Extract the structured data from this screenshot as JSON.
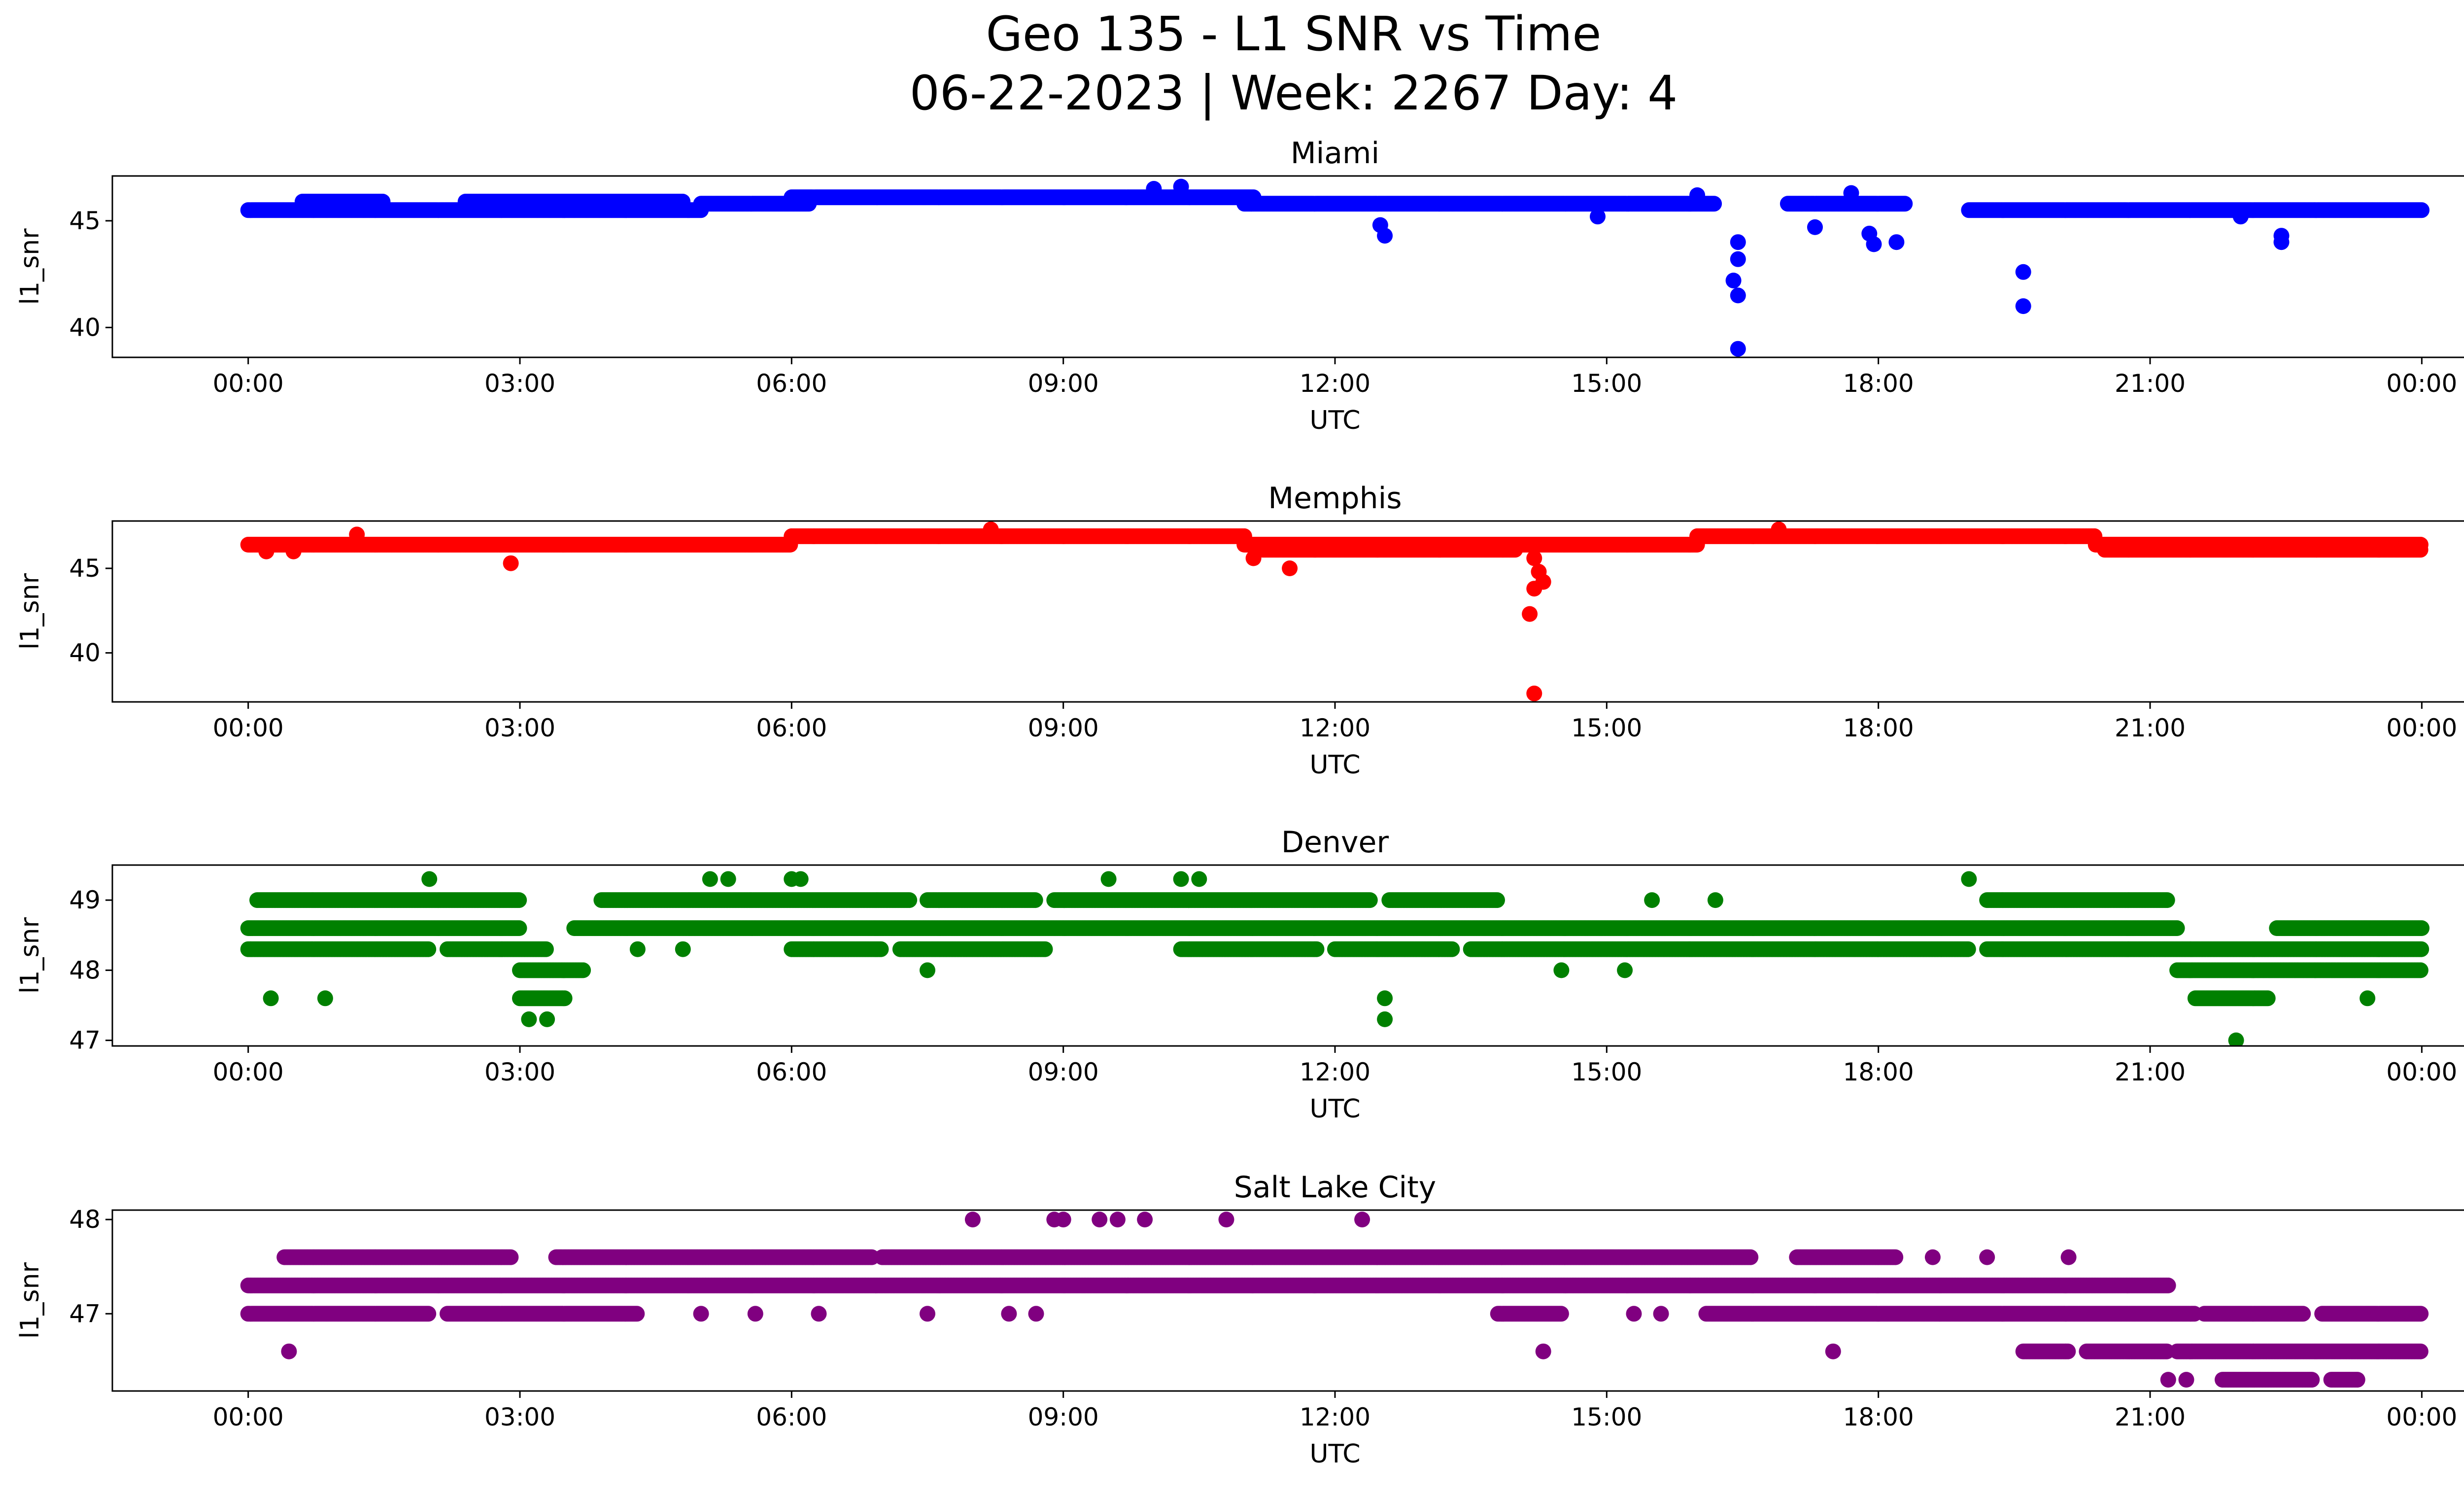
{
  "figure": {
    "title_line1": "Geo 135 - L1 SNR vs Time",
    "title_line2": "06-22-2023 | Week: 2267 Day: 4"
  },
  "chart_data": [
    {
      "type": "scatter",
      "title": "Miami",
      "xlabel": "UTC",
      "ylabel": "l1_snr",
      "color": "#0000ff",
      "xlim_hours": [
        -1.5,
        25.5
      ],
      "ylim": [
        38.6,
        47.1
      ],
      "xticks": [
        "00:00",
        "03:00",
        "06:00",
        "09:00",
        "12:00",
        "15:00",
        "18:00",
        "21:00",
        "00:00"
      ],
      "yticks": [
        40,
        45
      ],
      "bands": [
        {
          "y": 45.5,
          "segments": [
            [
              0.0,
              5.0
            ],
            [
              19.0,
              24.0
            ]
          ]
        },
        {
          "y": 45.8,
          "segments": [
            [
              5.0,
              6.2
            ],
            [
              11.0,
              16.2
            ],
            [
              17.0,
              18.3
            ]
          ]
        },
        {
          "y": 46.1,
          "segments": [
            [
              6.0,
              11.1
            ]
          ]
        },
        {
          "y": 45.9,
          "segments": [
            [
              0.6,
              1.5
            ],
            [
              2.4,
              4.8
            ]
          ]
        }
      ],
      "points": [
        [
          10.0,
          46.5
        ],
        [
          10.3,
          46.6
        ],
        [
          12.5,
          44.8
        ],
        [
          12.55,
          44.3
        ],
        [
          14.9,
          45.2
        ],
        [
          16.45,
          44.0
        ],
        [
          16.45,
          43.2
        ],
        [
          16.4,
          42.2
        ],
        [
          16.45,
          41.5
        ],
        [
          16.45,
          39.0
        ],
        [
          17.3,
          44.7
        ],
        [
          17.9,
          44.4
        ],
        [
          17.95,
          43.9
        ],
        [
          18.2,
          44.0
        ],
        [
          16.0,
          46.2
        ],
        [
          17.7,
          46.3
        ],
        [
          19.6,
          42.6
        ],
        [
          19.6,
          41.0
        ],
        [
          22.45,
          44.3
        ],
        [
          22.45,
          44.0
        ],
        [
          22.0,
          45.2
        ]
      ]
    },
    {
      "type": "scatter",
      "title": "Memphis",
      "xlabel": "UTC",
      "ylabel": "l1_snr",
      "color": "#ff0000",
      "xlim_hours": [
        -1.5,
        25.5
      ],
      "ylim": [
        37.1,
        47.8
      ],
      "xticks": [
        "00:00",
        "03:00",
        "06:00",
        "09:00",
        "12:00",
        "15:00",
        "18:00",
        "21:00",
        "00:00"
      ],
      "yticks": [
        40,
        45
      ],
      "bands": [
        {
          "y": 46.4,
          "segments": [
            [
              0.0,
              6.0
            ],
            [
              11.0,
              16.0
            ],
            [
              20.4,
              24.0
            ]
          ]
        },
        {
          "y": 46.9,
          "segments": [
            [
              6.0,
              11.0
            ],
            [
              16.0,
              20.4
            ]
          ]
        },
        {
          "y": 46.1,
          "segments": [
            [
              11.2,
              14.0
            ],
            [
              20.5,
              24.0
            ]
          ]
        }
      ],
      "points": [
        [
          1.2,
          47.0
        ],
        [
          2.9,
          45.3
        ],
        [
          8.2,
          47.3
        ],
        [
          11.1,
          45.6
        ],
        [
          11.5,
          45.0
        ],
        [
          14.2,
          45.6
        ],
        [
          14.25,
          44.8
        ],
        [
          14.3,
          44.2
        ],
        [
          14.2,
          43.8
        ],
        [
          14.15,
          42.3
        ],
        [
          14.2,
          37.6
        ],
        [
          16.9,
          47.3
        ],
        [
          0.2,
          46.0
        ],
        [
          0.5,
          46.0
        ]
      ]
    },
    {
      "type": "scatter",
      "title": "Denver",
      "xlabel": "UTC",
      "ylabel": "l1_snr",
      "color": "#008000",
      "xlim_hours": [
        -1.5,
        25.5
      ],
      "ylim": [
        46.92,
        49.5
      ],
      "xticks": [
        "00:00",
        "03:00",
        "06:00",
        "09:00",
        "12:00",
        "15:00",
        "18:00",
        "21:00",
        "00:00"
      ],
      "yticks": [
        47,
        48,
        49
      ],
      "bands": [
        {
          "y": 49.0,
          "segments": [
            [
              0.1,
              3.0
            ],
            [
              3.9,
              7.3
            ],
            [
              7.5,
              8.7
            ],
            [
              8.9,
              12.4
            ],
            [
              12.6,
              13.8
            ],
            [
              19.2,
              21.2
            ]
          ]
        },
        {
          "y": 48.6,
          "segments": [
            [
              0.0,
              3.0
            ],
            [
              3.6,
              21.3
            ],
            [
              22.4,
              24.0
            ]
          ]
        },
        {
          "y": 48.3,
          "segments": [
            [
              0.0,
              2.0
            ],
            [
              2.2,
              3.3
            ],
            [
              6.0,
              7.0
            ],
            [
              7.2,
              8.8
            ],
            [
              10.3,
              11.8
            ],
            [
              12.0,
              13.3
            ],
            [
              13.5,
              19.0
            ],
            [
              19.2,
              24.0
            ]
          ]
        },
        {
          "y": 48.0,
          "segments": [
            [
              3.0,
              3.7
            ],
            [
              21.3,
              24.0
            ]
          ]
        },
        {
          "y": 47.6,
          "segments": [
            [
              3.0,
              3.5
            ],
            [
              21.5,
              22.3
            ]
          ]
        }
      ],
      "points": [
        [
          0.25,
          47.6
        ],
        [
          0.85,
          47.6
        ],
        [
          2.0,
          49.3
        ],
        [
          3.1,
          47.3
        ],
        [
          3.3,
          47.3
        ],
        [
          5.1,
          49.3
        ],
        [
          5.3,
          49.3
        ],
        [
          6.0,
          49.3
        ],
        [
          6.1,
          49.3
        ],
        [
          7.5,
          48.0
        ],
        [
          9.5,
          49.3
        ],
        [
          10.3,
          49.3
        ],
        [
          10.5,
          49.3
        ],
        [
          12.55,
          47.6
        ],
        [
          12.55,
          47.3
        ],
        [
          14.5,
          48.0
        ],
        [
          15.2,
          48.0
        ],
        [
          19.0,
          49.3
        ],
        [
          21.95,
          47.0
        ],
        [
          23.4,
          47.6
        ],
        [
          4.3,
          48.3
        ],
        [
          4.8,
          48.3
        ],
        [
          15.5,
          49.0
        ],
        [
          16.2,
          49.0
        ]
      ]
    },
    {
      "type": "scatter",
      "title": "Salt Lake City",
      "xlabel": "UTC",
      "ylabel": "l1_snr",
      "color": "#800080",
      "xlim_hours": [
        -1.5,
        25.5
      ],
      "ylim": [
        46.18,
        48.1
      ],
      "xticks": [
        "00:00",
        "03:00",
        "06:00",
        "09:00",
        "12:00",
        "15:00",
        "18:00",
        "21:00",
        "00:00"
      ],
      "yticks": [
        47,
        48
      ],
      "bands": [
        {
          "y": 47.3,
          "segments": [
            [
              0.0,
              21.2
            ]
          ]
        },
        {
          "y": 47.6,
          "segments": [
            [
              0.4,
              2.9
            ],
            [
              3.4,
              6.9
            ],
            [
              7.0,
              16.6
            ],
            [
              17.1,
              18.2
            ]
          ]
        },
        {
          "y": 47.0,
          "segments": [
            [
              0.0,
              2.0
            ],
            [
              2.2,
              4.3
            ],
            [
              13.8,
              14.5
            ],
            [
              16.1,
              21.5
            ],
            [
              21.6,
              22.7
            ],
            [
              22.9,
              24.0
            ]
          ]
        },
        {
          "y": 46.6,
          "segments": [
            [
              19.6,
              20.1
            ],
            [
              20.3,
              21.2
            ],
            [
              21.3,
              24.0
            ]
          ]
        },
        {
          "y": 46.3,
          "segments": [
            [
              21.8,
              22.8
            ],
            [
              23.0,
              23.3
            ]
          ]
        }
      ],
      "points": [
        [
          0.45,
          46.6
        ],
        [
          8.0,
          48.0
        ],
        [
          8.9,
          48.0
        ],
        [
          9.0,
          48.0
        ],
        [
          9.4,
          48.0
        ],
        [
          9.6,
          48.0
        ],
        [
          9.9,
          48.0
        ],
        [
          10.8,
          48.0
        ],
        [
          12.3,
          48.0
        ],
        [
          14.3,
          46.6
        ],
        [
          17.5,
          46.6
        ],
        [
          21.2,
          46.3
        ],
        [
          21.4,
          46.3
        ],
        [
          5.0,
          47.0
        ],
        [
          5.6,
          47.0
        ],
        [
          6.3,
          47.0
        ],
        [
          7.5,
          47.0
        ],
        [
          8.4,
          47.0
        ],
        [
          8.7,
          47.0
        ],
        [
          15.3,
          47.0
        ],
        [
          15.6,
          47.0
        ],
        [
          18.6,
          47.6
        ],
        [
          19.2,
          47.6
        ],
        [
          20.1,
          47.6
        ]
      ]
    }
  ]
}
